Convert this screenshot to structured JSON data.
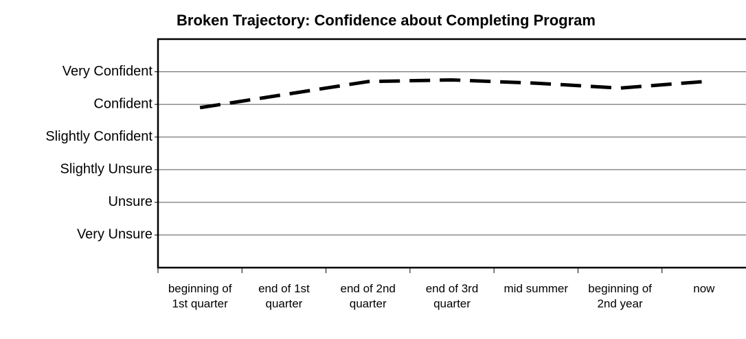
{
  "chart_data": {
    "type": "line",
    "title": "Broken Trajectory: Confidence about Completing Program",
    "categories": [
      "beginning of 1st quarter",
      "end of 1st quarter",
      "end of 2nd quarter",
      "end of 3rd quarter",
      "mid summer",
      "beginning of 2nd year",
      "now"
    ],
    "values": [
      4.9,
      5.3,
      5.7,
      5.75,
      5.65,
      5.5,
      5.7
    ],
    "color": "#000000",
    "ylim": [
      0,
      7
    ],
    "yticks": [
      {
        "value": 1,
        "label": "Very Unsure"
      },
      {
        "value": 2,
        "label": "Unsure"
      },
      {
        "value": 3,
        "label": "Slightly Unsure"
      },
      {
        "value": 4,
        "label": "Slightly Confident"
      },
      {
        "value": 5,
        "label": "Confident"
      },
      {
        "value": 6,
        "label": "Very Confident"
      }
    ],
    "grid": true
  }
}
